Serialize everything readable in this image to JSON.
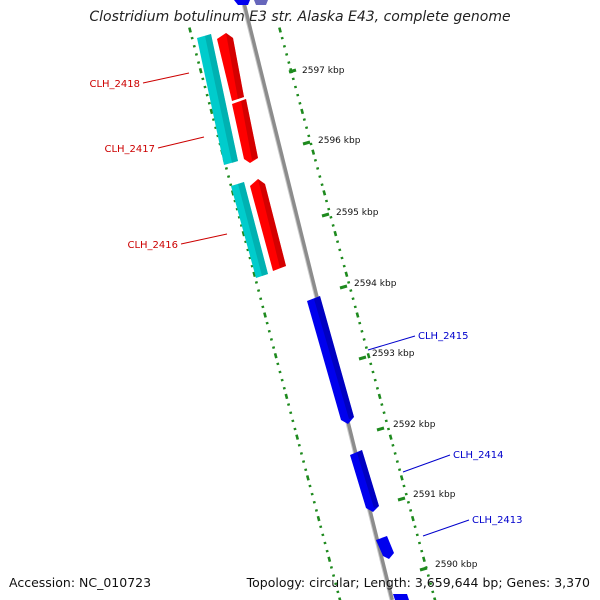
{
  "header": {
    "title": "Clostridium botulinum E3 str. Alaska E43, complete genome"
  },
  "footer": {
    "accession": "Accession: NC_010723",
    "stats": "Topology: circular; Length: 3,659,644 bp; Genes: 3,370"
  },
  "colors": {
    "forward_cds": "#ff0000",
    "forward_gene": "#00cccc",
    "reverse_cds": "#0000ee",
    "reverse_gene": "#6666bb",
    "backbone": "#8c8c8c",
    "ticks": "#1e8a1e",
    "forward_label": "#cc0000",
    "reverse_label": "#0000cc"
  },
  "ruler": {
    "unit": "kbp",
    "labels": [
      "2597 kbp",
      "2596 kbp",
      "2595 kbp",
      "2594 kbp",
      "2593 kbp",
      "2592 kbp",
      "2591 kbp",
      "2590 kbp"
    ]
  },
  "genes": {
    "forward": [
      {
        "label": "CLH_2418"
      },
      {
        "label": "CLH_2417"
      },
      {
        "label": "CLH_2416"
      }
    ],
    "reverse": [
      {
        "label": "CLH_2415"
      },
      {
        "label": "CLH_2414"
      },
      {
        "label": "CLH_2413"
      }
    ]
  }
}
